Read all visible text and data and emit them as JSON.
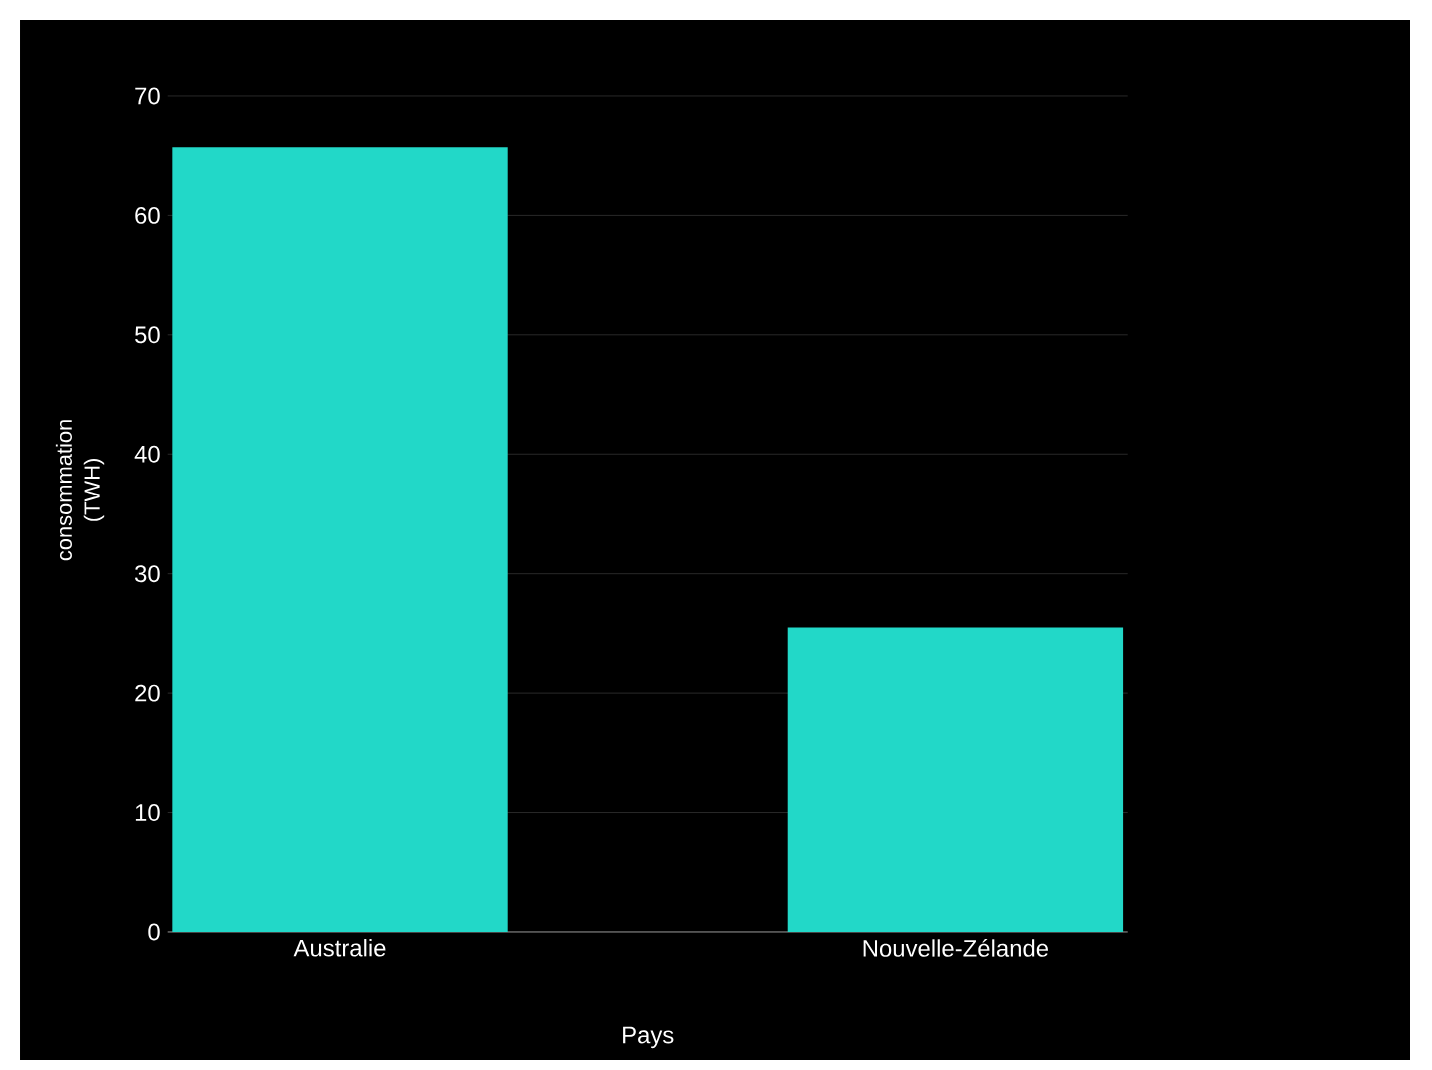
{
  "chart_data": {
    "type": "bar",
    "categories": [
      "Australie",
      "Nouvelle-Zélande"
    ],
    "values": [
      65.7,
      25.5
    ],
    "color": "#22d8c8",
    "xlabel": "Pays",
    "ylabel": "consommation (TWH)",
    "ylim": [
      0,
      70
    ],
    "yticks": [
      0,
      10,
      20,
      30,
      40,
      50,
      60,
      70
    ],
    "grid": "y"
  }
}
